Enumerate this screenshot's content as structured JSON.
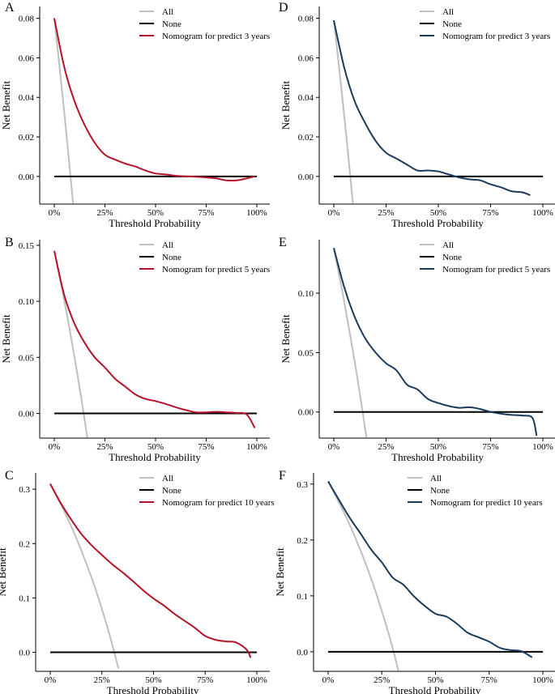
{
  "colors": {
    "all": "#bfbfbf",
    "none": "#000000",
    "red": "#b5122b",
    "blue": "#1b3a5c"
  },
  "chart_data": [
    {
      "panel_label": "A",
      "type": "line",
      "xlabel": "Threshold Probability",
      "ylabel": "Net Benefit",
      "xticks": [
        "0%",
        "25%",
        "50%",
        "75%",
        "100%"
      ],
      "ylim": [
        -0.014,
        0.086
      ],
      "yticks": [
        0.0,
        0.02,
        0.04,
        0.06,
        0.08
      ],
      "ytick_labels": [
        "0.00",
        "0.02",
        "0.04",
        "0.06",
        "0.08"
      ],
      "legend": [
        "All",
        "None",
        "Nomogram for predict 3 years"
      ],
      "model_color": "red",
      "all_x": [
        0,
        0.03,
        0.06,
        0.085,
        0.095
      ],
      "model_x": [
        0,
        0.05,
        0.1,
        0.15,
        0.2,
        0.25,
        0.3,
        0.35,
        0.4,
        0.45,
        0.5,
        0.55,
        0.6,
        0.65,
        0.7,
        0.75,
        0.8,
        0.85,
        0.9,
        0.95,
        0.99
      ],
      "model_y": [
        0.08,
        0.055,
        0.038,
        0.026,
        0.017,
        0.011,
        0.0085,
        0.0065,
        0.005,
        0.003,
        0.0015,
        0.001,
        0.0003,
        0.0,
        -0.0002,
        -0.0005,
        -0.001,
        -0.002,
        -0.002,
        -0.001,
        0.0
      ]
    },
    {
      "panel_label": "B",
      "type": "line",
      "xlabel": "Threshold Probability",
      "ylabel": "Net Benefit",
      "xticks": [
        "0%",
        "25%",
        "50%",
        "75%",
        "100%"
      ],
      "ylim": [
        -0.022,
        0.155
      ],
      "yticks": [
        0.0,
        0.05,
        0.1,
        0.15
      ],
      "ytick_labels": [
        "0.00",
        "0.05",
        "0.10",
        "0.15"
      ],
      "legend": [
        "All",
        "None",
        "Nomogram for predict 5 years"
      ],
      "model_color": "red",
      "all_x": [
        0,
        0.05,
        0.1,
        0.14,
        0.165
      ],
      "model_x": [
        0,
        0.05,
        0.1,
        0.15,
        0.2,
        0.25,
        0.3,
        0.35,
        0.4,
        0.45,
        0.5,
        0.55,
        0.6,
        0.65,
        0.7,
        0.75,
        0.8,
        0.85,
        0.9,
        0.95,
        0.99
      ],
      "model_y": [
        0.145,
        0.105,
        0.08,
        0.063,
        0.05,
        0.041,
        0.031,
        0.024,
        0.017,
        0.013,
        0.011,
        0.0085,
        0.0055,
        0.003,
        0.001,
        0.001,
        0.0015,
        0.001,
        0.0005,
        -0.001,
        -0.013
      ]
    },
    {
      "panel_label": "C",
      "type": "line",
      "xlabel": "Threshold Probability",
      "ylabel": "Net Benefit",
      "xticks": [
        "0%",
        "25%",
        "50%",
        "75%",
        "100%"
      ],
      "ylim": [
        -0.035,
        0.33
      ],
      "yticks": [
        0.0,
        0.1,
        0.2,
        0.3
      ],
      "ytick_labels": [
        "0.0",
        "0.1",
        "0.2",
        "0.3"
      ],
      "legend": [
        "All",
        "None",
        "Nomogram for predict 10 years"
      ],
      "model_color": "red",
      "all_x": [
        0,
        0.1,
        0.2,
        0.28,
        0.33
      ],
      "model_x": [
        0,
        0.05,
        0.1,
        0.15,
        0.2,
        0.25,
        0.3,
        0.35,
        0.4,
        0.45,
        0.5,
        0.55,
        0.6,
        0.65,
        0.7,
        0.75,
        0.8,
        0.85,
        0.9,
        0.95,
        0.97
      ],
      "model_y": [
        0.31,
        0.275,
        0.245,
        0.218,
        0.197,
        0.179,
        0.162,
        0.147,
        0.131,
        0.114,
        0.099,
        0.086,
        0.071,
        0.058,
        0.045,
        0.03,
        0.023,
        0.02,
        0.018,
        0.005,
        -0.01
      ]
    },
    {
      "panel_label": "D",
      "type": "line",
      "xlabel": "Threshold Probability",
      "ylabel": "Net Benefit",
      "xticks": [
        "0%",
        "25%",
        "50%",
        "75%",
        "100%"
      ],
      "ylim": [
        -0.014,
        0.086
      ],
      "yticks": [
        0.0,
        0.02,
        0.04,
        0.06,
        0.08
      ],
      "ytick_labels": [
        "0.00",
        "0.02",
        "0.04",
        "0.06",
        "0.08"
      ],
      "legend": [
        "All",
        "None",
        "Nomogram for predict 3 years"
      ],
      "model_color": "blue",
      "all_x": [
        0,
        0.03,
        0.06,
        0.085,
        0.095
      ],
      "model_x": [
        0,
        0.05,
        0.1,
        0.15,
        0.2,
        0.25,
        0.3,
        0.35,
        0.4,
        0.45,
        0.5,
        0.55,
        0.6,
        0.65,
        0.7,
        0.75,
        0.8,
        0.85,
        0.9,
        0.94
      ],
      "model_y": [
        0.079,
        0.055,
        0.038,
        0.027,
        0.018,
        0.012,
        0.009,
        0.006,
        0.003,
        0.003,
        0.0025,
        0.001,
        -0.0005,
        -0.0015,
        -0.002,
        -0.004,
        -0.0055,
        -0.0075,
        -0.008,
        -0.0095
      ]
    },
    {
      "panel_label": "E",
      "type": "line",
      "xlabel": "Threshold Probability",
      "ylabel": "Net Benefit",
      "xticks": [
        "0%",
        "25%",
        "50%",
        "75%",
        "100%"
      ],
      "ylim": [
        -0.022,
        0.145
      ],
      "yticks": [
        0.0,
        0.05,
        0.1
      ],
      "ytick_labels": [
        "0.00",
        "0.05",
        "0.10"
      ],
      "legend": [
        "All",
        "None",
        "Nomogram for predict 5 years"
      ],
      "model_color": "blue",
      "all_x": [
        0,
        0.05,
        0.1,
        0.14,
        0.16
      ],
      "model_x": [
        0,
        0.05,
        0.1,
        0.15,
        0.2,
        0.25,
        0.3,
        0.35,
        0.4,
        0.45,
        0.5,
        0.55,
        0.6,
        0.65,
        0.7,
        0.75,
        0.8,
        0.85,
        0.9,
        0.95,
        0.97
      ],
      "model_y": [
        0.138,
        0.105,
        0.08,
        0.062,
        0.05,
        0.041,
        0.035,
        0.023,
        0.019,
        0.011,
        0.0075,
        0.005,
        0.0035,
        0.004,
        0.0025,
        0.0,
        -0.0015,
        -0.0025,
        -0.003,
        -0.005,
        -0.02
      ]
    },
    {
      "panel_label": "F",
      "type": "line",
      "xlabel": "Threshold Probability",
      "ylabel": "Net Benefit",
      "xticks": [
        "0%",
        "25%",
        "50%",
        "75%",
        "100%"
      ],
      "ylim": [
        -0.035,
        0.32
      ],
      "yticks": [
        0.0,
        0.1,
        0.2,
        0.3
      ],
      "ytick_labels": [
        "0.0",
        "0.1",
        "0.2",
        "0.3"
      ],
      "legend": [
        "All",
        "None",
        "Nomogram for predict 10 years"
      ],
      "model_color": "blue",
      "all_x": [
        0,
        0.1,
        0.2,
        0.28,
        0.33
      ],
      "model_x": [
        0,
        0.05,
        0.1,
        0.15,
        0.2,
        0.25,
        0.3,
        0.35,
        0.4,
        0.45,
        0.5,
        0.55,
        0.6,
        0.65,
        0.7,
        0.75,
        0.8,
        0.85,
        0.9,
        0.95
      ],
      "model_y": [
        0.305,
        0.272,
        0.24,
        0.212,
        0.183,
        0.16,
        0.133,
        0.12,
        0.099,
        0.082,
        0.068,
        0.063,
        0.05,
        0.034,
        0.026,
        0.018,
        0.007,
        0.003,
        0.001,
        -0.01
      ]
    }
  ]
}
